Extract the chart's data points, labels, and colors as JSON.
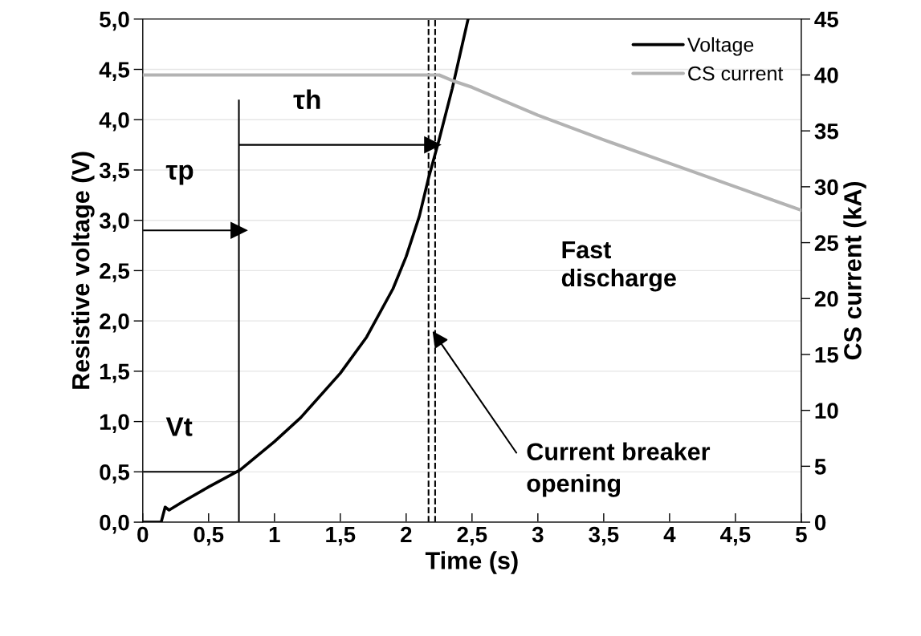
{
  "chart_data": {
    "type": "line",
    "xlabel": "Time (s)",
    "ylabel": "Resistive voltage (V)",
    "y2label": "CS current (kA)",
    "series": [
      {
        "name": "Voltage",
        "color": "#000000",
        "x": [
          0,
          0.14,
          0.17,
          0.2,
          0.3,
          0.5,
          0.74,
          1.0,
          1.2,
          1.5,
          1.7,
          1.9,
          2.0,
          2.1,
          2.17,
          2.25,
          2.35,
          2.47
        ],
        "values": [
          0,
          0,
          0.15,
          0.12,
          0.2,
          0.35,
          0.52,
          0.8,
          1.04,
          1.48,
          1.84,
          2.32,
          2.64,
          3.04,
          3.42,
          3.8,
          4.31,
          5.0
        ]
      },
      {
        "name": "CS current",
        "color": "#b3b3b3",
        "axis": "y2",
        "x": [
          0,
          2.25,
          2.35,
          2.5,
          3,
          3.5,
          4,
          4.5,
          5
        ],
        "values": [
          40,
          40,
          39.5,
          38.9,
          36.4,
          34.2,
          32.1,
          30,
          27.9
        ]
      },
      {
        "color": "#000000",
        "x": [
          0,
          0.73
        ],
        "values": [
          0.5,
          0.5
        ]
      },
      {
        "color": "#000000",
        "x": [
          0.73,
          0.73
        ],
        "values": [
          0,
          4.2
        ]
      },
      {
        "color": "#000000",
        "x": [
          0,
          0.73
        ],
        "values": [
          2.9,
          2.9
        ],
        "marker": "triangle"
      },
      {
        "color": "#000000",
        "x": [
          0.73,
          2.2
        ],
        "values": [
          3.75,
          3.75
        ],
        "marker": "triangle"
      }
    ],
    "xlim": [
      0,
      5
    ],
    "xticks": [
      0,
      {
        "value": 0.5,
        "label": "0,5"
      },
      1,
      {
        "value": 1.5,
        "label": "1,5"
      },
      2,
      {
        "value": 2.5,
        "label": "2,5"
      },
      3,
      {
        "value": 3.5,
        "label": "3,5"
      },
      4,
      {
        "value": 4.5,
        "label": "4,5"
      },
      5
    ],
    "ylim": [
      0,
      5
    ],
    "yticks": [
      {
        "value": 0,
        "label": "0,0"
      },
      {
        "value": 0.5,
        "label": "0,5"
      },
      {
        "value": 1,
        "label": "1,0"
      },
      {
        "value": 1.5,
        "label": "1,5"
      },
      {
        "value": 2,
        "label": "2,0"
      },
      {
        "value": 2.5,
        "label": "2,5"
      },
      {
        "value": 3,
        "label": "3,0"
      },
      {
        "value": 3.5,
        "label": "3,5"
      },
      {
        "value": 4,
        "label": "4,0"
      },
      {
        "value": 4.5,
        "label": "4,5"
      },
      {
        "value": 5,
        "label": "5,0"
      }
    ],
    "y2lim": [
      0,
      45
    ],
    "y2ticks": [
      0,
      5,
      10,
      15,
      20,
      25,
      30,
      35,
      40,
      45
    ],
    "ref_lines": [
      {
        "axis": "x",
        "value": 2.17,
        "color": "#000000",
        "line_style": "dashed"
      },
      {
        "axis": "x",
        "value": 2.22,
        "color": "#000000",
        "line_style": "dashed"
      }
    ],
    "annotations": [
      "Vt",
      "τp",
      "τh",
      "Fast discharge",
      {
        "text": "Current breaker opening",
        "x": 2.2,
        "y": 1.9
      }
    ],
    "grid": "y",
    "legend": "top right",
    "marker": "none",
    "line_style": "solid"
  }
}
